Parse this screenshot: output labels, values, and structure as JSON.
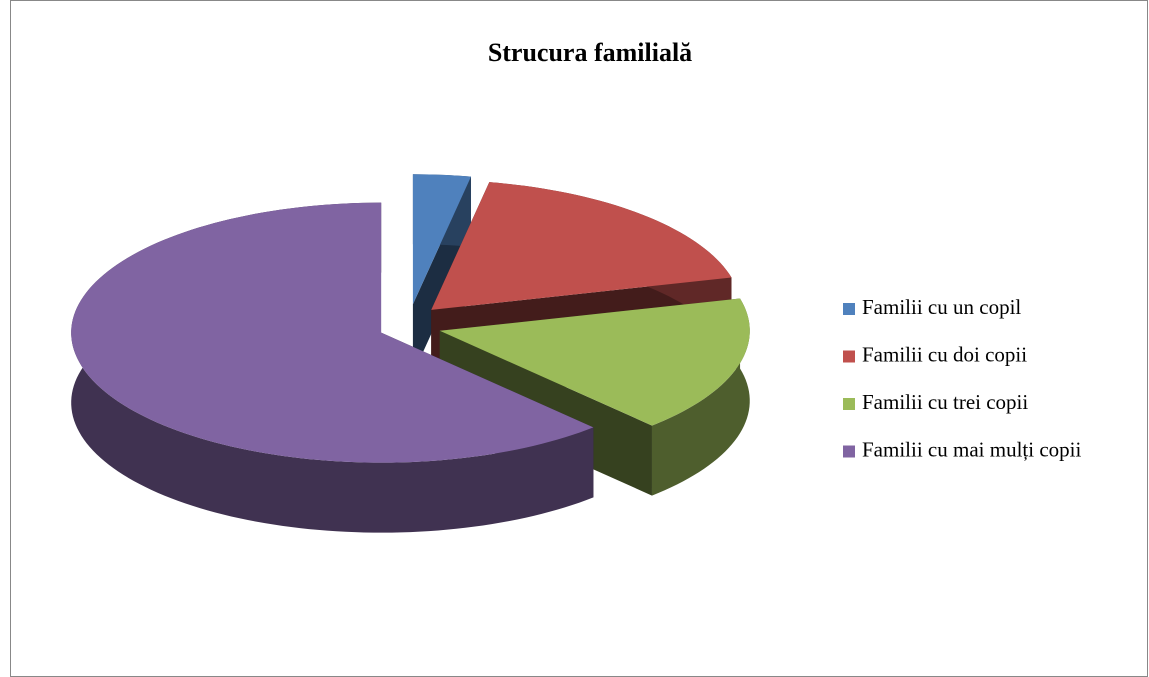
{
  "chart_data": {
    "type": "pie",
    "title": "Strucura familială",
    "categories": [
      "Familii cu un copil",
      "Familii cu doi copii",
      "Familii cu trei copii",
      "Familii cu mai mulți copii"
    ],
    "values": [
      3,
      18,
      17,
      62
    ],
    "colors": [
      "#4f81bd",
      "#c0504d",
      "#9bbb59",
      "#8064a2"
    ],
    "legend": "right"
  }
}
